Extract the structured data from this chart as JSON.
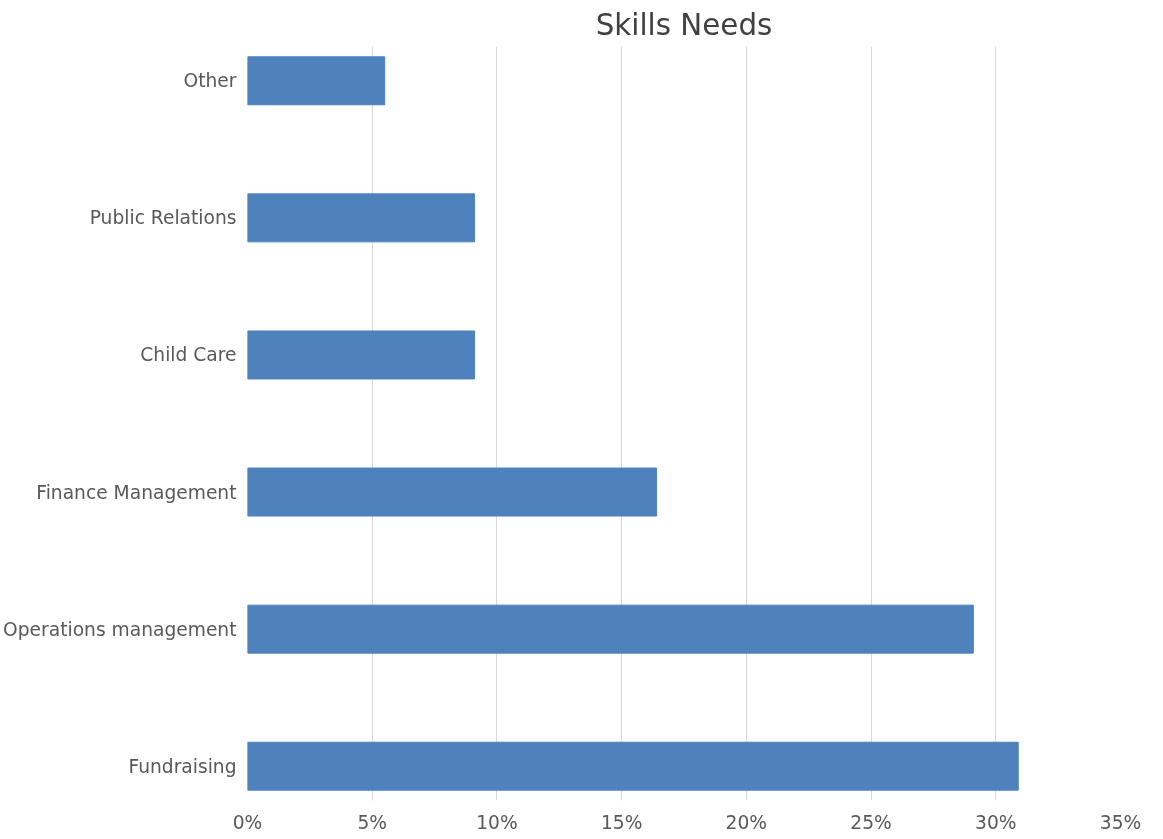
{
  "chart_data": {
    "type": "bar",
    "orientation": "horizontal",
    "title": "Skills Needs",
    "categories": [
      "Other",
      "Public Relations",
      "Child Care",
      "Finance Management",
      "Operations management",
      "Fundraising"
    ],
    "values": [
      5.5,
      9.1,
      9.1,
      16.4,
      29.1,
      30.9
    ],
    "color": "#4f81bd",
    "xlim": [
      0,
      35
    ],
    "xticks": [
      {
        "value": 0,
        "label": "0%"
      },
      {
        "value": 5,
        "label": "5%"
      },
      {
        "value": 10,
        "label": "10%"
      },
      {
        "value": 15,
        "label": "15%"
      },
      {
        "value": 20,
        "label": "20%"
      },
      {
        "value": 25,
        "label": "25%"
      },
      {
        "value": 30,
        "label": "30%"
      },
      {
        "value": 35,
        "label": "35%"
      }
    ],
    "grid": "x"
  }
}
